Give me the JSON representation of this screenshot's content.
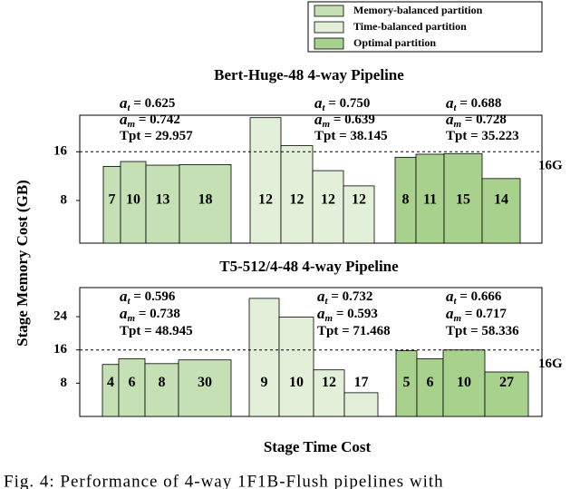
{
  "legend_title": null,
  "y_label": "Stage Memory Cost (GB)",
  "x_label": "Stage Time Cost",
  "caption": "Fig. 4: Performance of 4-way 1F1B-Flush pipelines with",
  "stat_labels": [
    {
      "main": "a",
      "sub": "t",
      "eq": " = "
    },
    {
      "main": "a",
      "sub": "m",
      "eq": " = "
    },
    {
      "main": "Tpt",
      "eq": " = "
    }
  ],
  "chart_data": [
    {
      "type": "bar",
      "title": "Bert-Huge-48 4-way Pipeline",
      "ylim": [
        1,
        22
      ],
      "yticks": [
        8,
        16
      ],
      "threshold": {
        "value": 16,
        "label": "16G"
      },
      "series": [
        {
          "name": "Memory-balanced partition",
          "color": "#c5e0b4",
          "values": [
            13.6,
            14.4,
            13.8,
            13.9
          ],
          "times": [
            19,
            28,
            37,
            57
          ],
          "layers": [
            7,
            10,
            13,
            18
          ],
          "stats": [
            0.625,
            0.742,
            29.957
          ]
        },
        {
          "name": "Time-balanced partition",
          "color": "#e2f0d9",
          "values": [
            21.6,
            17.0,
            12.9,
            10.4
          ],
          "times": [
            34,
            35,
            34,
            34
          ],
          "layers": [
            12,
            12,
            12,
            12
          ],
          "stats": [
            0.75,
            0.639,
            38.145
          ],
          "stat_value_labels": [
            "0.750",
            "0.639",
            "38.145"
          ]
        },
        {
          "name": "Optimal partition",
          "color": "#a9d18e",
          "values": [
            15.1,
            15.6,
            15.7,
            11.6
          ],
          "times": [
            23,
            31,
            42,
            42
          ],
          "layers": [
            8,
            11,
            15,
            14
          ],
          "stats": [
            0.688,
            0.728,
            35.223
          ]
        }
      ]
    },
    {
      "type": "bar",
      "title": "T5-512/4-48 4-way Pipeline",
      "ylim": [
        0,
        31
      ],
      "yticks": [
        8,
        16,
        24
      ],
      "threshold": {
        "value": 16,
        "label": "16G"
      },
      "series": [
        {
          "name": "Memory-balanced partition",
          "color": "#c5e0b4",
          "values": [
            12.5,
            13.9,
            12.7,
            13.6
          ],
          "times": [
            18,
            29,
            37,
            58
          ],
          "layers": [
            4,
            6,
            8,
            30
          ],
          "stats": [
            0.596,
            0.738,
            48.945
          ]
        },
        {
          "name": "Time-balanced partition",
          "color": "#e2f0d9",
          "values": [
            28.4,
            23.9,
            11.2,
            5.7
          ],
          "times": [
            33,
            38,
            34,
            37
          ],
          "layers": [
            9,
            10,
            12,
            17
          ],
          "stats": [
            0.732,
            0.593,
            71.468
          ]
        },
        {
          "name": "Optimal partition",
          "color": "#a9d18e",
          "values": [
            15.8,
            13.9,
            16.0,
            10.7
          ],
          "times": [
            23,
            29,
            46,
            48
          ],
          "layers": [
            5,
            6,
            10,
            27
          ],
          "stats": [
            0.666,
            0.717,
            58.336
          ]
        }
      ]
    }
  ]
}
